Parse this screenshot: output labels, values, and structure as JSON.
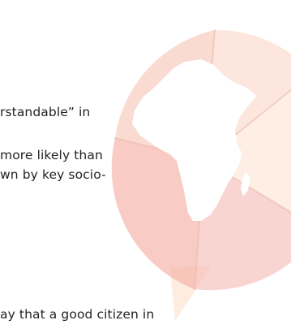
{
  "document": {
    "lines": [
      "rstandable” in",
      "more likely than",
      "wn by key socio-",
      "ay that a good citizen in"
    ]
  },
  "watermark": {
    "icon": "africa-speech-bubble-logo",
    "colors": {
      "salmon": "#f7c5b5",
      "peach": "#fbd6c8",
      "apricot": "#fde3d3",
      "rose": "#f5bcb6",
      "coral": "#f3ad9f",
      "tail": "#fde0cf",
      "continent": "#ffffff"
    }
  }
}
